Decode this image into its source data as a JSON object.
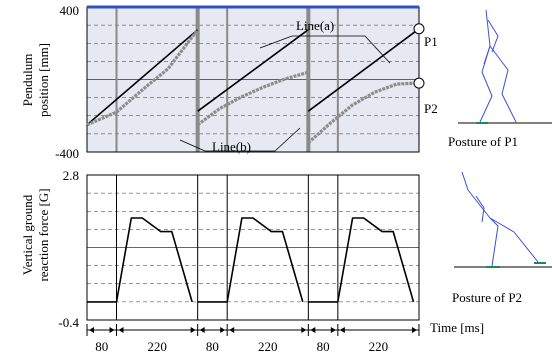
{
  "chart_data": [
    {
      "type": "line",
      "ylabel_lines": [
        "Pendulum",
        "position [mm]"
      ],
      "ylim": [
        -400,
        400
      ],
      "ytick_labels": [
        "400",
        "-400"
      ],
      "x_unit": "ms",
      "xlim": [
        0,
        900
      ],
      "phase_boundaries_ms": [
        0,
        80,
        300,
        380,
        600,
        680,
        900
      ],
      "series": [
        {
          "name": "Line(a)",
          "style": "black",
          "segments": [
            [
              [
                0,
                -250
              ],
              [
                300,
                275
              ]
            ],
            [
              [
                300,
                -175
              ],
              [
                600,
                275
              ]
            ],
            [
              [
                600,
                -175
              ],
              [
                900,
                280
              ]
            ]
          ]
        },
        {
          "name": "Line(b)",
          "style": "gray",
          "segments": [
            [
              [
                0,
                -250
              ],
              [
                80,
                -180
              ],
              [
                160,
                -40
              ],
              [
                220,
                60
              ],
              [
                300,
                275
              ]
            ],
            [
              [
                300,
                -250
              ],
              [
                360,
                -160
              ],
              [
                420,
                -95
              ],
              [
                480,
                -40
              ],
              [
                540,
                5
              ],
              [
                600,
                40
              ]
            ],
            [
              [
                600,
                -350
              ],
              [
                660,
                -240
              ],
              [
                720,
                -140
              ],
              [
                780,
                -70
              ],
              [
                840,
                -25
              ],
              [
                900,
                -20
              ]
            ]
          ]
        }
      ],
      "point_labels": [
        {
          "text": "P1",
          "x": 900,
          "y": 280
        },
        {
          "text": "P2",
          "x": 900,
          "y": -20
        }
      ]
    },
    {
      "type": "line",
      "ylabel_lines": [
        "Vertical ground",
        "reaction force [G]"
      ],
      "ylim": [
        -0.4,
        2.8
      ],
      "ytick_labels": [
        "2.8",
        "-0.4"
      ],
      "x_unit": "ms",
      "xlim": [
        0,
        900
      ],
      "phase_boundaries_ms": [
        0,
        80,
        300,
        380,
        600,
        680,
        900
      ],
      "series": [
        {
          "style": "black",
          "segments": [
            [
              [
                0,
                0
              ],
              [
                80,
                0
              ],
              [
                120,
                1.85
              ],
              [
                150,
                1.85
              ],
              [
                200,
                1.55
              ],
              [
                230,
                1.55
              ],
              [
                285,
                0
              ]
            ],
            [
              [
                300,
                0
              ],
              [
                380,
                0
              ],
              [
                420,
                1.85
              ],
              [
                450,
                1.85
              ],
              [
                500,
                1.55
              ],
              [
                530,
                1.55
              ],
              [
                585,
                0
              ]
            ],
            [
              [
                600,
                0
              ],
              [
                680,
                0
              ],
              [
                720,
                1.85
              ],
              [
                750,
                1.85
              ],
              [
                800,
                1.55
              ],
              [
                830,
                1.55
              ],
              [
                885,
                0
              ]
            ]
          ]
        }
      ],
      "x_segment_labels": [
        "80",
        "220",
        "80",
        "220",
        "80",
        "220"
      ],
      "xlabel": "Time [ms]"
    }
  ],
  "captions": {
    "posture1": "Posture of P1",
    "posture2": "Posture of P2"
  },
  "colors": {
    "axis_bg": "#e6e8f2",
    "grid": "#333333",
    "phase_line": "#8a8a8a",
    "top_border": "#3050c8",
    "line_a": "#000000",
    "line_b": "#8c8c8c",
    "stick": "#3a50d8",
    "foot": "#1a8a5a"
  }
}
